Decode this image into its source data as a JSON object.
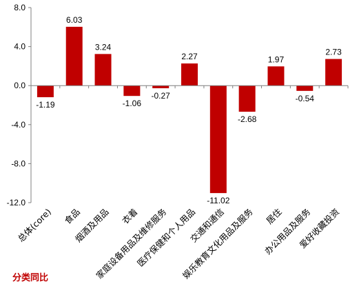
{
  "chart_data": {
    "type": "bar",
    "categories": [
      "总体(core)",
      "食品",
      "烟酒及用品",
      "衣着",
      "家庭设备用品及维修服务",
      "医疗保健和个人用品",
      "交通和通信",
      "娱乐教育文化用品及服务",
      "居住",
      "办公用品及服务",
      "爱好收藏投资"
    ],
    "values": [
      -1.19,
      6.03,
      3.24,
      -1.06,
      -0.27,
      2.27,
      -11.02,
      -2.68,
      1.97,
      -0.54,
      2.73
    ],
    "value_labels": [
      "-1.19",
      "6.03",
      "3.24",
      "-1.06",
      "-0.27",
      "2.27",
      "-11.02",
      "-2.68",
      "1.97",
      "-0.54",
      "2.73"
    ],
    "yticks": [
      8.0,
      4.0,
      0.0,
      -4.0,
      -8.0,
      -12.0
    ],
    "ytick_labels": [
      "8.0",
      "4.0",
      "0.0",
      "-4.0",
      "-8.0",
      "-12.0"
    ],
    "ylim": [
      -12,
      8
    ],
    "grid": false,
    "colors": {
      "bar": "#c00000",
      "axis": "#7f7f7f",
      "legend_text": "#c00000"
    },
    "legend_text": "分类同比",
    "title": "",
    "xlabel": "",
    "ylabel": ""
  }
}
